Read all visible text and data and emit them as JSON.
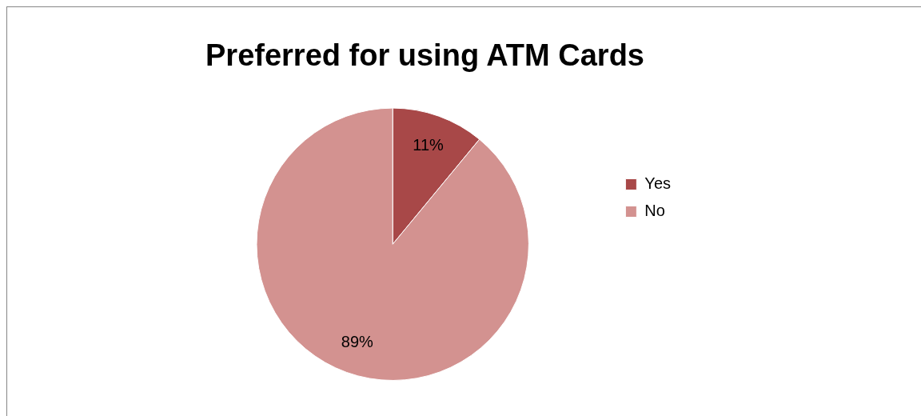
{
  "chart_data": {
    "type": "pie",
    "title": "Preferred for using ATM Cards",
    "categories": [
      "Yes",
      "No"
    ],
    "values": [
      11,
      89
    ],
    "colors": [
      "#a84848",
      "#d39290"
    ],
    "value_labels": [
      "11%",
      "89%"
    ],
    "legend": "right"
  }
}
